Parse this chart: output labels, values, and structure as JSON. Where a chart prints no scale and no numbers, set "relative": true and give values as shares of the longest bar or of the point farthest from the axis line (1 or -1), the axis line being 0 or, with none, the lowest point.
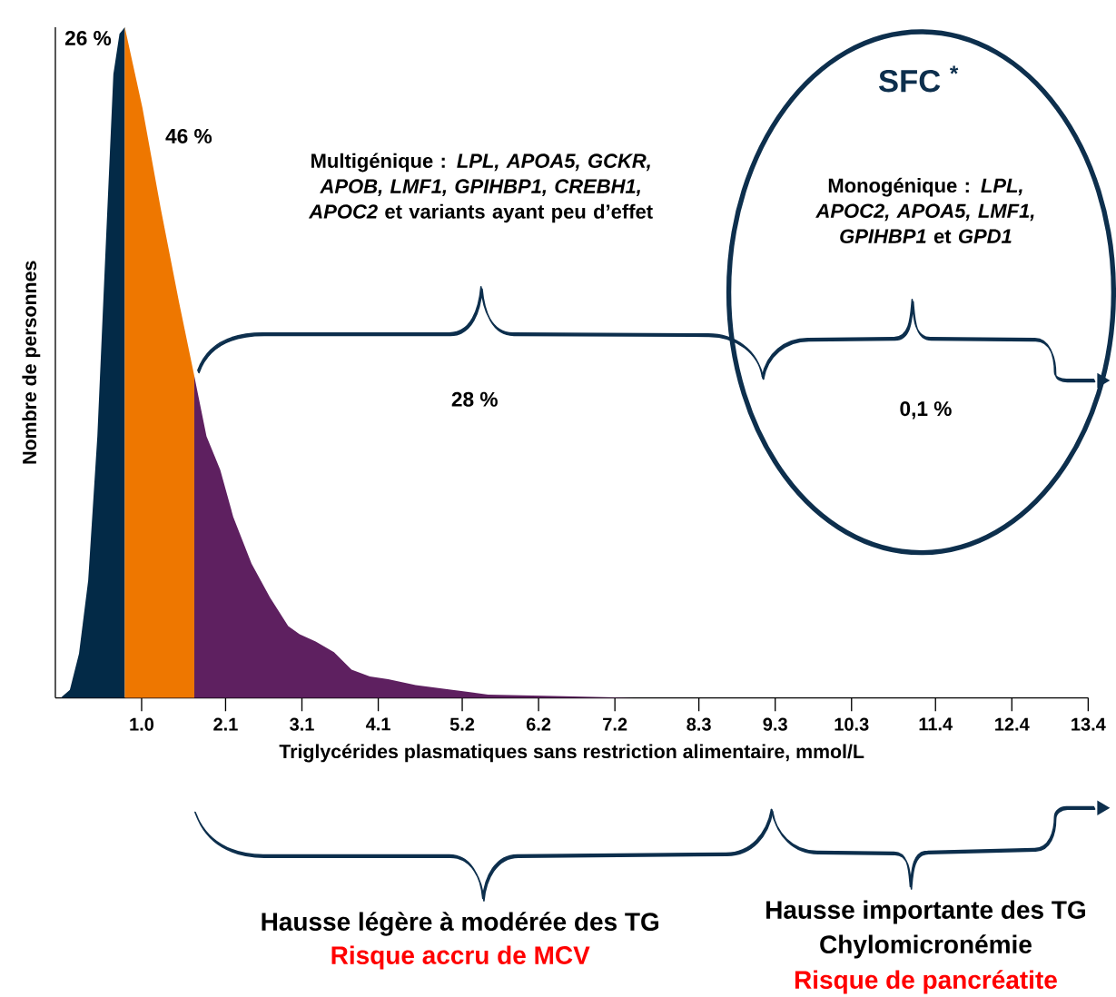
{
  "chart_data": {
    "type": "area",
    "relative": true,
    "xlabel": "Triglycérides plasmatiques sans restriction alimentaire, mmol/L",
    "ylabel": "Nombre de personnes",
    "xlim": [
      -0.13,
      13.4
    ],
    "xticks": [
      {
        "value": 1.0,
        "label": "1.0"
      },
      2.1,
      3.1,
      4.1,
      5.2,
      6.2,
      7.2,
      8.3,
      9.3,
      10.3,
      11.4,
      12.4,
      13.4
    ],
    "series": [
      {
        "color": "#032a47",
        "x": [
          -0.06,
          0.06,
          0.18,
          0.3,
          0.42,
          0.54,
          0.63,
          0.71,
          0.78
        ],
        "values": [
          0,
          0.012,
          0.066,
          0.175,
          0.39,
          0.7,
          0.93,
          0.99,
          1.0
        ]
      },
      {
        "color": "#ee7700",
        "x": [
          0.78,
          1.01,
          1.25,
          1.49,
          1.69
        ],
        "values": [
          1.0,
          0.88,
          0.73,
          0.59,
          0.48
        ]
      },
      {
        "color": "#5e2060",
        "x": [
          1.69,
          1.85,
          2.03,
          2.2,
          2.44,
          2.68,
          2.92,
          3.07,
          3.28,
          3.52,
          3.75,
          3.99,
          4.23,
          4.59,
          5.07,
          5.54,
          6.26,
          7.45
        ],
        "values": [
          0.48,
          0.39,
          0.34,
          0.27,
          0.2,
          0.15,
          0.107,
          0.095,
          0.084,
          0.068,
          0.042,
          0.032,
          0.028,
          0.019,
          0.012,
          0.005,
          0.003,
          0
        ]
      }
    ],
    "annotations": [
      "26 %",
      "46 %",
      "28 %",
      "0,1 %",
      "SFC $^{*}$",
      "Multigénique : *LPL, APOA5, GCKR, APOB, LMF1, GPIHBP1, CREBH1, APOC2* et variants ayant peu d’effet",
      "Monogénique : *LPL, APOC2, APOA5, LMF1, GPIHBP1* et *GPD1*",
      "Hausse légère à modérée des TG",
      "Risque accru de MCV",
      "Hausse importante des TG",
      "Chylomicronémie",
      "Risque de pancréatite"
    ]
  }
}
